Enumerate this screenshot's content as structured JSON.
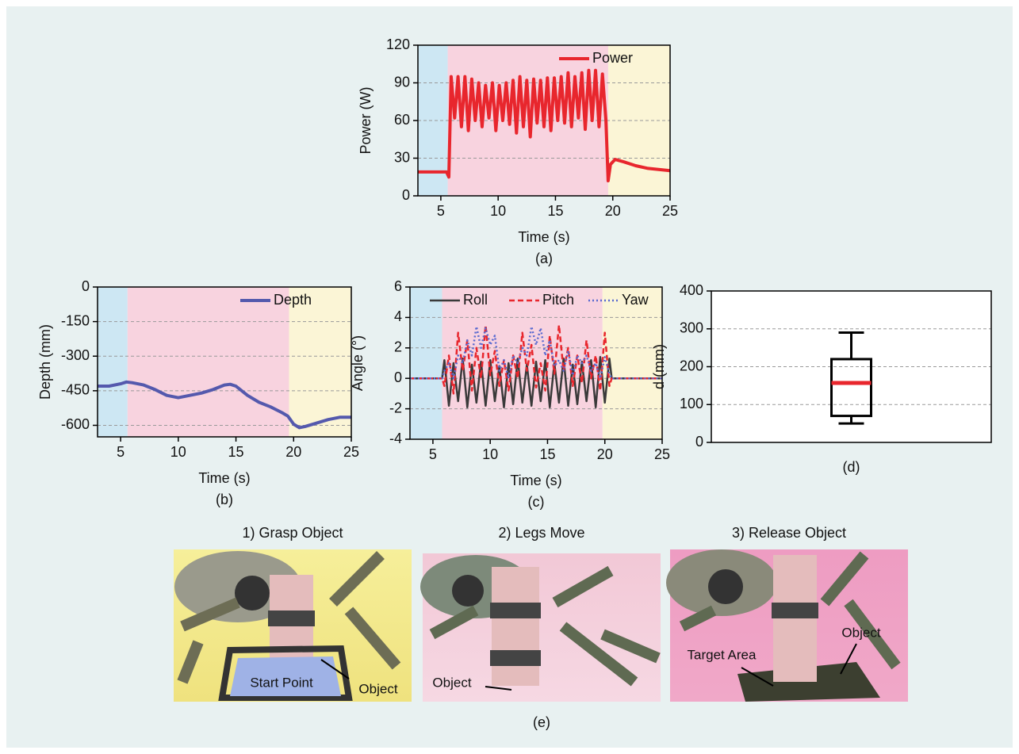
{
  "chart_data": [
    {
      "type": "line",
      "caption": "(a)",
      "xlabel": "Time (s)",
      "ylabel": "Power (W)",
      "xlim": [
        3,
        25
      ],
      "xticks": [
        5,
        10,
        15,
        20,
        25
      ],
      "ylim": [
        0,
        120
      ],
      "yticks": [
        0,
        30,
        60,
        90,
        120
      ],
      "grid": true,
      "legend": "upper right",
      "regions": [
        {
          "start": 3,
          "end": 5.6,
          "color": "#cde7f3"
        },
        {
          "start": 5.6,
          "end": 19.6,
          "color": "#f8d3df"
        },
        {
          "start": 19.6,
          "end": 25,
          "color": "#fbf5d6"
        }
      ],
      "x": [
        3,
        5.5,
        5.7,
        5.9,
        6.2,
        6.5,
        6.8,
        7.1,
        7.4,
        7.7,
        8.0,
        8.3,
        8.6,
        8.9,
        9.2,
        9.5,
        9.8,
        10.1,
        10.4,
        10.7,
        11.0,
        11.3,
        11.6,
        11.9,
        12.2,
        12.5,
        12.8,
        13.1,
        13.4,
        13.7,
        14.0,
        14.3,
        14.6,
        14.9,
        15.2,
        15.5,
        15.8,
        16.1,
        16.4,
        16.7,
        17.0,
        17.3,
        17.6,
        17.9,
        18.2,
        18.5,
        18.8,
        19.1,
        19.4,
        19.6,
        19.8,
        20.2,
        21,
        22,
        23,
        24,
        25
      ],
      "series": [
        {
          "name": "Power",
          "color": "#e8262d",
          "style": "solid",
          "width": 4,
          "values": [
            19,
            19,
            15,
            95,
            62,
            95,
            55,
            95,
            52,
            93,
            60,
            90,
            55,
            88,
            62,
            90,
            52,
            88,
            60,
            90,
            57,
            92,
            50,
            95,
            55,
            92,
            47,
            93,
            58,
            92,
            55,
            94,
            52,
            94,
            60,
            95,
            58,
            98,
            55,
            95,
            62,
            98,
            53,
            100,
            60,
            100,
            55,
            97,
            60,
            12,
            25,
            29,
            27,
            24,
            22,
            21,
            20
          ]
        }
      ]
    },
    {
      "type": "line",
      "caption": "(b)",
      "xlabel": "Time (s)",
      "ylabel": "Depth (mm)",
      "xlim": [
        3,
        25
      ],
      "xticks": [
        5,
        10,
        15,
        20,
        25
      ],
      "ylim": [
        -650,
        0
      ],
      "yticks": [
        0,
        -150,
        -300,
        -450,
        -600
      ],
      "grid": true,
      "legend": "upper right",
      "regions": [
        {
          "start": 3,
          "end": 5.6,
          "color": "#cde7f3"
        },
        {
          "start": 5.6,
          "end": 19.6,
          "color": "#f8d3df"
        },
        {
          "start": 19.6,
          "end": 25,
          "color": "#fbf5d6"
        }
      ],
      "x": [
        3,
        4,
        5,
        5.5,
        6,
        7,
        8,
        9,
        10,
        11,
        12,
        13,
        14,
        14.5,
        15,
        16,
        17,
        18,
        19,
        19.5,
        20,
        20.5,
        21,
        22,
        23,
        24,
        25
      ],
      "series": [
        {
          "name": "Depth",
          "color": "#5459ad",
          "style": "solid",
          "width": 4,
          "values": [
            -430,
            -430,
            -420,
            -412,
            -415,
            -425,
            -445,
            -470,
            -480,
            -470,
            -460,
            -445,
            -425,
            -422,
            -430,
            -470,
            -500,
            -520,
            -545,
            -560,
            -595,
            -610,
            -605,
            -590,
            -575,
            -565,
            -565
          ]
        }
      ]
    },
    {
      "type": "line",
      "caption": "(c)",
      "xlabel": "Time (s)",
      "ylabel": "Angle (°)",
      "xlim": [
        3,
        25
      ],
      "xticks": [
        5,
        10,
        15,
        20,
        25
      ],
      "ylim": [
        -4,
        6
      ],
      "yticks": [
        -4,
        -2,
        0,
        2,
        4,
        6
      ],
      "grid": true,
      "legend": "top",
      "regions": [
        {
          "start": 3,
          "end": 5.8,
          "color": "#cde7f3"
        },
        {
          "start": 5.8,
          "end": 19.8,
          "color": "#f8d3df"
        },
        {
          "start": 19.8,
          "end": 25,
          "color": "#fbf5d6"
        }
      ],
      "x": [
        3,
        5.8,
        6.0,
        6.4,
        6.8,
        7.2,
        7.6,
        8.0,
        8.4,
        8.8,
        9.2,
        9.6,
        10.0,
        10.4,
        10.8,
        11.2,
        11.6,
        12.0,
        12.4,
        12.8,
        13.2,
        13.6,
        14.0,
        14.4,
        14.8,
        15.2,
        15.6,
        16.0,
        16.4,
        16.8,
        17.2,
        17.6,
        18.0,
        18.4,
        18.8,
        19.2,
        19.6,
        20.0,
        20.4,
        20.6,
        25
      ],
      "series": [
        {
          "name": "Roll",
          "color": "#3a3a3a",
          "style": "solid",
          "width": 2.5,
          "values": [
            0,
            0,
            1.2,
            -1.8,
            1.0,
            -1.5,
            1.3,
            -1.9,
            0.9,
            -1.6,
            1.1,
            -1.8,
            1.2,
            -1.5,
            0.8,
            -1.9,
            1.0,
            -1.7,
            1.3,
            -1.6,
            0.9,
            -1.8,
            1.1,
            -1.5,
            1.2,
            -1.9,
            1.0,
            -1.6,
            1.3,
            -1.8,
            0.9,
            -1.7,
            1.1,
            -1.5,
            1.2,
            -1.9,
            1.4,
            -1.6,
            1.3,
            0,
            0
          ]
        },
        {
          "name": "Pitch",
          "color": "#e8262d",
          "style": "dashed",
          "width": 2.5,
          "values": [
            0,
            0,
            -0.5,
            1.5,
            -1.0,
            3.0,
            0.5,
            2.5,
            -0.8,
            2.0,
            0.0,
            3.5,
            0.2,
            1.8,
            -0.5,
            1.2,
            -0.8,
            1.5,
            0.0,
            3.0,
            0.5,
            2.2,
            -0.6,
            1.0,
            -0.8,
            2.8,
            0.3,
            3.5,
            0.5,
            2.0,
            -0.5,
            1.5,
            -0.3,
            2.5,
            0.0,
            1.5,
            -0.8,
            3.0,
            -0.5,
            0,
            0
          ]
        },
        {
          "name": "Yaw",
          "color": "#5a6ad0",
          "style": "dotted",
          "width": 2.5,
          "values": [
            0,
            0,
            0.5,
            1.0,
            0.0,
            1.5,
            1.0,
            2.5,
            1.5,
            3.4,
            2.0,
            3.3,
            2.2,
            2.8,
            0.5,
            1.2,
            0.0,
            1.5,
            1.0,
            2.0,
            1.5,
            3.4,
            2.2,
            3.3,
            1.5,
            2.5,
            0.8,
            1.2,
            0.5,
            1.8,
            0.2,
            1.5,
            1.0,
            1.5,
            0.5,
            1.0,
            0.0,
            1.4,
            0.3,
            0,
            0
          ]
        }
      ]
    },
    {
      "type": "box",
      "caption": "(d)",
      "ylabel": "d (mm)",
      "ylim": [
        0,
        400
      ],
      "yticks": [
        0,
        100,
        200,
        300,
        400
      ],
      "grid": true,
      "color": "#000000",
      "median_color": "#e8262d",
      "stats": {
        "min": 50,
        "q1": 70,
        "median": 157,
        "q3": 220,
        "max": 290
      }
    }
  ],
  "panel_e": {
    "caption": "(e)",
    "photos": [
      {
        "title": "1) Grasp Object",
        "labels": [
          "Start Point",
          "Object"
        ]
      },
      {
        "title": "2) Legs Move",
        "labels": [
          "Object"
        ]
      },
      {
        "title": "3) Release Object",
        "labels": [
          "Target Area",
          "Object"
        ]
      }
    ]
  }
}
